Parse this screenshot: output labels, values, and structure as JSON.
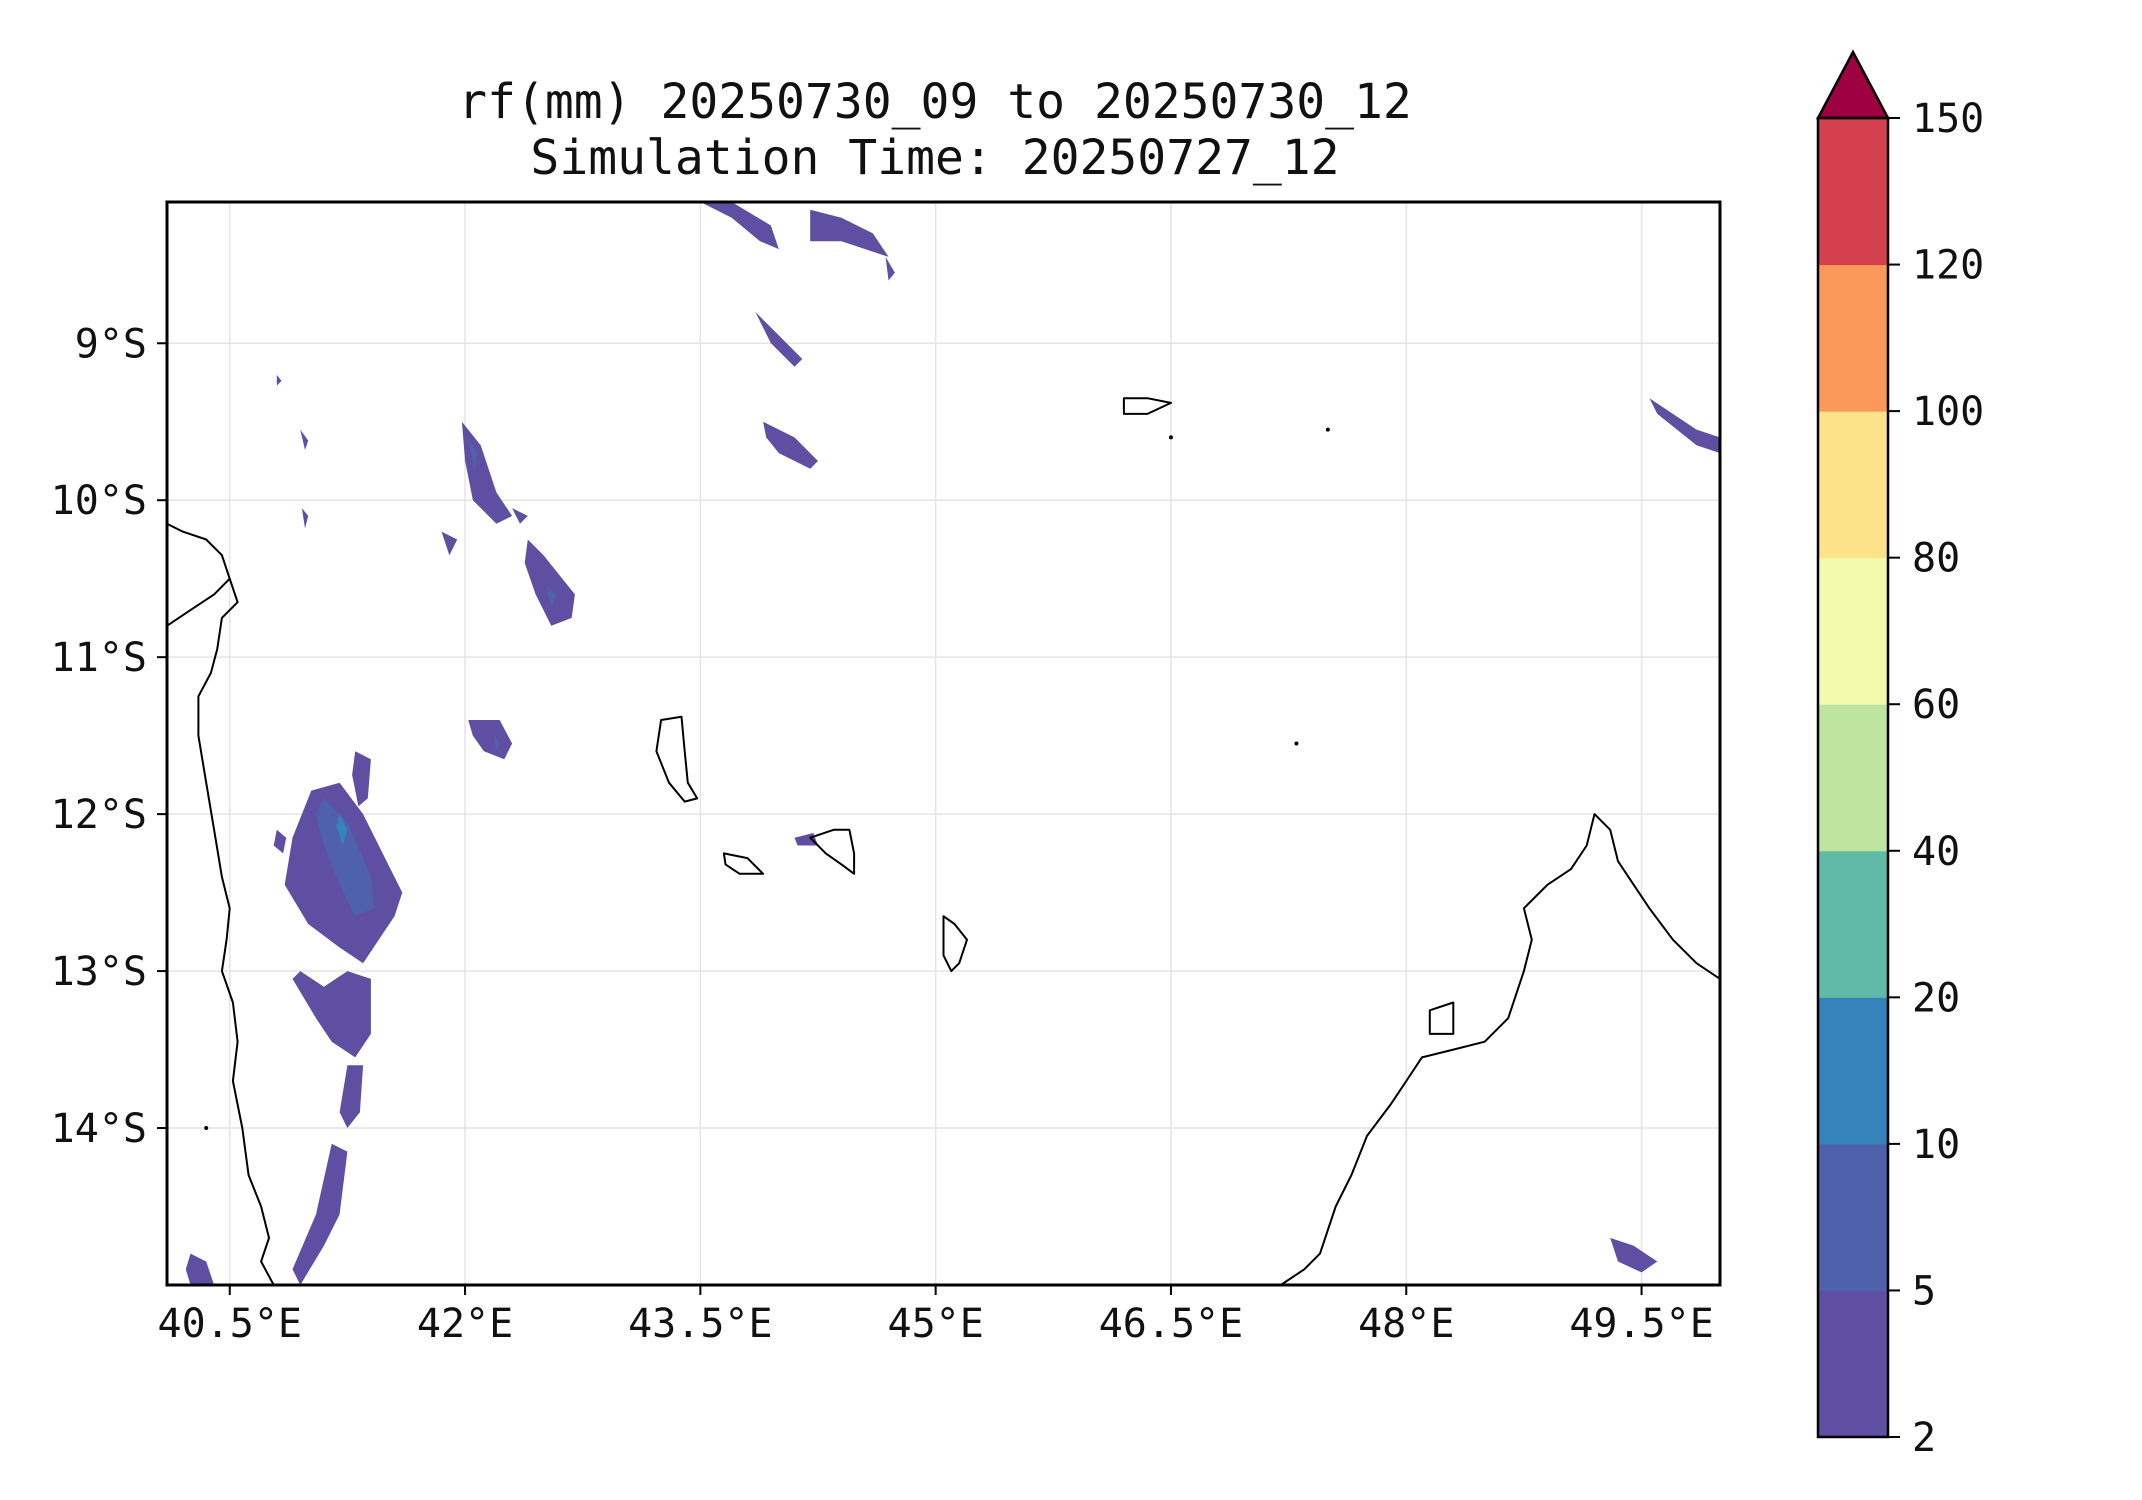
{
  "title": {
    "line1": "rf(mm) 20250730_09 to 20250730_12",
    "line2": "Simulation Time: 20250727_12"
  },
  "map": {
    "lon_range": [
      40.1,
      50.0
    ],
    "lat_range": [
      -15.0,
      -8.1
    ],
    "x_ticks": [
      "40.5°E",
      "42°E",
      "43.5°E",
      "45°E",
      "46.5°E",
      "48°E",
      "49.5°E"
    ],
    "x_tick_values": [
      40.5,
      42.0,
      43.5,
      45.0,
      46.5,
      48.0,
      49.5
    ],
    "y_ticks": [
      "9°S",
      "10°S",
      "11°S",
      "12°S",
      "13°S",
      "14°S"
    ],
    "y_tick_values": [
      -9,
      -10,
      -11,
      -12,
      -13,
      -14
    ],
    "gridlines": true,
    "coastline_color": "#000000"
  },
  "colorbar": {
    "labels": [
      "2",
      "5",
      "10",
      "20",
      "40",
      "60",
      "80",
      "100",
      "120",
      "150"
    ],
    "colors": [
      "#5e4fa2",
      "#4f61aa",
      "#3682ba",
      "#5fbaa8",
      "#bde5a0",
      "#f3faad",
      "#fce38a",
      "#f99858",
      "#d5404e"
    ],
    "extend_color": "#9e0142",
    "extend": "max"
  },
  "precip_regions": [
    {
      "level": 1,
      "points": [
        [
          41.02,
          -11.85
        ],
        [
          41.2,
          -11.8
        ],
        [
          41.35,
          -12.0
        ],
        [
          41.5,
          -12.3
        ],
        [
          41.6,
          -12.5
        ],
        [
          41.55,
          -12.65
        ],
        [
          41.45,
          -12.8
        ],
        [
          41.35,
          -12.95
        ],
        [
          41.2,
          -12.85
        ],
        [
          41.0,
          -12.7
        ],
        [
          40.85,
          -12.45
        ],
        [
          40.9,
          -12.15
        ]
      ]
    },
    {
      "level": 2,
      "points": [
        [
          41.1,
          -11.9
        ],
        [
          41.25,
          -12.05
        ],
        [
          41.4,
          -12.4
        ],
        [
          41.42,
          -12.6
        ],
        [
          41.3,
          -12.65
        ],
        [
          41.2,
          -12.45
        ],
        [
          41.1,
          -12.2
        ],
        [
          41.05,
          -12.0
        ]
      ]
    },
    {
      "level": 3,
      "points": [
        [
          41.2,
          -12.0
        ],
        [
          41.25,
          -12.1
        ],
        [
          41.22,
          -12.2
        ],
        [
          41.18,
          -12.08
        ]
      ]
    },
    {
      "level": 1,
      "points": [
        [
          41.3,
          -11.6
        ],
        [
          41.4,
          -11.65
        ],
        [
          41.38,
          -11.9
        ],
        [
          41.32,
          -11.95
        ],
        [
          41.28,
          -11.75
        ]
      ]
    },
    {
      "level": 1,
      "points": [
        [
          40.8,
          -12.1
        ],
        [
          40.86,
          -12.15
        ],
        [
          40.84,
          -12.25
        ],
        [
          40.78,
          -12.2
        ]
      ]
    },
    {
      "level": 1,
      "points": [
        [
          40.95,
          -13.0
        ],
        [
          41.1,
          -13.1
        ],
        [
          41.25,
          -13.0
        ],
        [
          41.4,
          -13.05
        ],
        [
          41.4,
          -13.4
        ],
        [
          41.3,
          -13.55
        ],
        [
          41.15,
          -13.45
        ],
        [
          41.05,
          -13.3
        ],
        [
          40.9,
          -13.05
        ]
      ]
    },
    {
      "level": 1,
      "points": [
        [
          41.25,
          -13.6
        ],
        [
          41.35,
          -13.6
        ],
        [
          41.33,
          -13.9
        ],
        [
          41.25,
          -14.0
        ],
        [
          41.2,
          -13.9
        ]
      ]
    },
    {
      "level": 1,
      "points": [
        [
          41.15,
          -14.1
        ],
        [
          41.25,
          -14.15
        ],
        [
          41.2,
          -14.55
        ],
        [
          41.1,
          -14.75
        ],
        [
          40.95,
          -15.0
        ],
        [
          40.9,
          -14.9
        ],
        [
          41.05,
          -14.55
        ]
      ]
    },
    {
      "level": 1,
      "points": [
        [
          40.25,
          -14.8
        ],
        [
          40.35,
          -14.85
        ],
        [
          40.4,
          -15.0
        ],
        [
          40.25,
          -15.0
        ],
        [
          40.22,
          -14.9
        ]
      ]
    },
    {
      "level": 1,
      "points": [
        [
          41.98,
          -9.5
        ],
        [
          42.1,
          -9.65
        ],
        [
          42.2,
          -9.95
        ],
        [
          42.3,
          -10.1
        ],
        [
          42.2,
          -10.15
        ],
        [
          42.05,
          -10.0
        ],
        [
          42.0,
          -9.75
        ]
      ]
    },
    {
      "level": 2,
      "points": [
        [
          42.02,
          -9.6
        ],
        [
          42.08,
          -9.7
        ],
        [
          42.06,
          -9.8
        ]
      ]
    },
    {
      "level": 1,
      "points": [
        [
          42.4,
          -10.25
        ],
        [
          42.5,
          -10.35
        ],
        [
          42.7,
          -10.6
        ],
        [
          42.68,
          -10.75
        ],
        [
          42.55,
          -10.8
        ],
        [
          42.45,
          -10.6
        ],
        [
          42.38,
          -10.4
        ]
      ]
    },
    {
      "level": 2,
      "points": [
        [
          42.52,
          -10.55
        ],
        [
          42.58,
          -10.6
        ],
        [
          42.55,
          -10.68
        ]
      ]
    },
    {
      "level": 1,
      "points": [
        [
          42.02,
          -11.4
        ],
        [
          42.22,
          -11.4
        ],
        [
          42.3,
          -11.55
        ],
        [
          42.25,
          -11.65
        ],
        [
          42.12,
          -11.6
        ],
        [
          42.05,
          -11.5
        ]
      ]
    },
    {
      "level": 2,
      "points": [
        [
          42.18,
          -11.48
        ],
        [
          42.22,
          -11.55
        ],
        [
          42.2,
          -11.6
        ]
      ]
    },
    {
      "level": 1,
      "points": [
        [
          42.3,
          -10.05
        ],
        [
          42.4,
          -10.1
        ],
        [
          42.35,
          -10.15
        ]
      ]
    },
    {
      "level": 1,
      "points": [
        [
          41.85,
          -10.2
        ],
        [
          41.95,
          -10.25
        ],
        [
          41.9,
          -10.35
        ]
      ]
    },
    {
      "level": 1,
      "points": [
        [
          43.5,
          -8.1
        ],
        [
          43.7,
          -8.1
        ],
        [
          43.95,
          -8.25
        ],
        [
          44.0,
          -8.4
        ],
        [
          43.88,
          -8.35
        ],
        [
          43.7,
          -8.2
        ]
      ]
    },
    {
      "level": 1,
      "points": [
        [
          44.2,
          -8.15
        ],
        [
          44.4,
          -8.2
        ],
        [
          44.6,
          -8.3
        ],
        [
          44.7,
          -8.45
        ],
        [
          44.55,
          -8.4
        ],
        [
          44.4,
          -8.35
        ],
        [
          44.2,
          -8.35
        ]
      ]
    },
    {
      "level": 1,
      "points": [
        [
          43.85,
          -8.8
        ],
        [
          44.0,
          -8.95
        ],
        [
          44.15,
          -9.1
        ],
        [
          44.1,
          -9.15
        ],
        [
          43.95,
          -9.0
        ]
      ]
    },
    {
      "level": 1,
      "points": [
        [
          43.9,
          -9.5
        ],
        [
          44.1,
          -9.6
        ],
        [
          44.25,
          -9.75
        ],
        [
          44.2,
          -9.8
        ],
        [
          44.0,
          -9.7
        ],
        [
          43.92,
          -9.6
        ]
      ]
    },
    {
      "level": 1,
      "points": [
        [
          44.68,
          -8.45
        ],
        [
          44.74,
          -8.55
        ],
        [
          44.7,
          -8.6
        ]
      ]
    },
    {
      "level": 1,
      "points": [
        [
          49.55,
          -9.35
        ],
        [
          49.7,
          -9.45
        ],
        [
          49.85,
          -9.55
        ],
        [
          50.0,
          -9.6
        ],
        [
          50.0,
          -9.7
        ],
        [
          49.85,
          -9.65
        ],
        [
          49.6,
          -9.45
        ]
      ]
    },
    {
      "level": 1,
      "points": [
        [
          49.3,
          -14.7
        ],
        [
          49.45,
          -14.75
        ],
        [
          49.6,
          -14.85
        ],
        [
          49.5,
          -14.92
        ],
        [
          49.35,
          -14.85
        ]
      ]
    },
    {
      "level": 1,
      "points": [
        [
          44.1,
          -12.15
        ],
        [
          44.22,
          -12.12
        ],
        [
          44.25,
          -12.2
        ],
        [
          44.12,
          -12.2
        ]
      ]
    },
    {
      "level": 1,
      "points": [
        [
          40.8,
          -9.2
        ],
        [
          40.83,
          -9.24
        ],
        [
          40.8,
          -9.27
        ]
      ]
    },
    {
      "level": 1,
      "points": [
        [
          40.95,
          -9.55
        ],
        [
          41.0,
          -9.62
        ],
        [
          40.98,
          -9.68
        ]
      ]
    },
    {
      "level": 1,
      "points": [
        [
          40.96,
          -10.05
        ],
        [
          41.0,
          -10.1
        ],
        [
          40.98,
          -10.18
        ]
      ]
    }
  ],
  "coastlines": [
    {
      "name": "africa",
      "closed": false,
      "points": [
        [
          40.1,
          -10.15
        ],
        [
          40.2,
          -10.2
        ],
        [
          40.35,
          -10.25
        ],
        [
          40.45,
          -10.35
        ],
        [
          40.5,
          -10.5
        ],
        [
          40.55,
          -10.65
        ],
        [
          40.45,
          -10.75
        ],
        [
          40.42,
          -10.95
        ],
        [
          40.38,
          -11.1
        ],
        [
          40.3,
          -11.25
        ],
        [
          40.3,
          -11.5
        ],
        [
          40.35,
          -11.8
        ],
        [
          40.4,
          -12.1
        ],
        [
          40.45,
          -12.4
        ],
        [
          40.5,
          -12.6
        ],
        [
          40.48,
          -12.8
        ],
        [
          40.45,
          -13.0
        ],
        [
          40.52,
          -13.2
        ],
        [
          40.55,
          -13.45
        ],
        [
          40.52,
          -13.7
        ],
        [
          40.58,
          -14.0
        ],
        [
          40.62,
          -14.3
        ],
        [
          40.7,
          -14.5
        ],
        [
          40.75,
          -14.7
        ],
        [
          40.7,
          -14.85
        ],
        [
          40.78,
          -15.0
        ]
      ]
    },
    {
      "name": "africa-north",
      "closed": false,
      "points": [
        [
          40.1,
          -10.8
        ],
        [
          40.25,
          -10.7
        ],
        [
          40.4,
          -10.6
        ],
        [
          40.5,
          -10.5
        ]
      ]
    },
    {
      "name": "madagascar",
      "closed": false,
      "points": [
        [
          47.2,
          -15.0
        ],
        [
          47.35,
          -14.9
        ],
        [
          47.45,
          -14.8
        ],
        [
          47.55,
          -14.5
        ],
        [
          47.65,
          -14.3
        ],
        [
          47.75,
          -14.05
        ],
        [
          47.9,
          -13.85
        ],
        [
          48.0,
          -13.7
        ],
        [
          48.1,
          -13.55
        ],
        [
          48.3,
          -13.5
        ],
        [
          48.5,
          -13.45
        ],
        [
          48.65,
          -13.3
        ],
        [
          48.75,
          -13.0
        ],
        [
          48.8,
          -12.8
        ],
        [
          48.75,
          -12.6
        ],
        [
          48.9,
          -12.45
        ],
        [
          49.05,
          -12.35
        ],
        [
          49.15,
          -12.2
        ],
        [
          49.2,
          -12.0
        ],
        [
          49.3,
          -12.1
        ],
        [
          49.35,
          -12.3
        ],
        [
          49.45,
          -12.45
        ],
        [
          49.55,
          -12.6
        ],
        [
          49.7,
          -12.8
        ],
        [
          49.85,
          -12.95
        ],
        [
          50.0,
          -13.05
        ]
      ]
    },
    {
      "name": "grande-comore",
      "closed": true,
      "points": [
        [
          43.25,
          -11.4
        ],
        [
          43.38,
          -11.38
        ],
        [
          43.4,
          -11.6
        ],
        [
          43.42,
          -11.8
        ],
        [
          43.48,
          -11.9
        ],
        [
          43.4,
          -11.92
        ],
        [
          43.3,
          -11.8
        ],
        [
          43.22,
          -11.6
        ]
      ]
    },
    {
      "name": "moheli",
      "closed": true,
      "points": [
        [
          43.65,
          -12.25
        ],
        [
          43.8,
          -12.28
        ],
        [
          43.9,
          -12.38
        ],
        [
          43.75,
          -12.38
        ],
        [
          43.66,
          -12.32
        ]
      ]
    },
    {
      "name": "anjouan",
      "closed": true,
      "points": [
        [
          44.2,
          -12.15
        ],
        [
          44.35,
          -12.1
        ],
        [
          44.45,
          -12.1
        ],
        [
          44.48,
          -12.25
        ],
        [
          44.48,
          -12.38
        ],
        [
          44.4,
          -12.32
        ],
        [
          44.3,
          -12.25
        ]
      ]
    },
    {
      "name": "mayotte",
      "closed": true,
      "points": [
        [
          45.05,
          -12.65
        ],
        [
          45.12,
          -12.7
        ],
        [
          45.2,
          -12.8
        ],
        [
          45.15,
          -12.95
        ],
        [
          45.1,
          -13.0
        ],
        [
          45.05,
          -12.9
        ]
      ]
    },
    {
      "name": "aldabra",
      "closed": true,
      "points": [
        [
          46.2,
          -9.35
        ],
        [
          46.35,
          -9.35
        ],
        [
          46.5,
          -9.38
        ],
        [
          46.35,
          -9.45
        ],
        [
          46.2,
          -9.45
        ]
      ]
    },
    {
      "name": "nosy-be",
      "closed": true,
      "points": [
        [
          48.15,
          -13.25
        ],
        [
          48.3,
          -13.2
        ],
        [
          48.3,
          -13.4
        ],
        [
          48.15,
          -13.4
        ]
      ]
    }
  ],
  "points_of_interest": [
    [
      46.5,
      -9.6
    ],
    [
      47.3,
      -11.55
    ],
    [
      47.5,
      -9.55
    ],
    [
      40.35,
      -14.0
    ]
  ]
}
